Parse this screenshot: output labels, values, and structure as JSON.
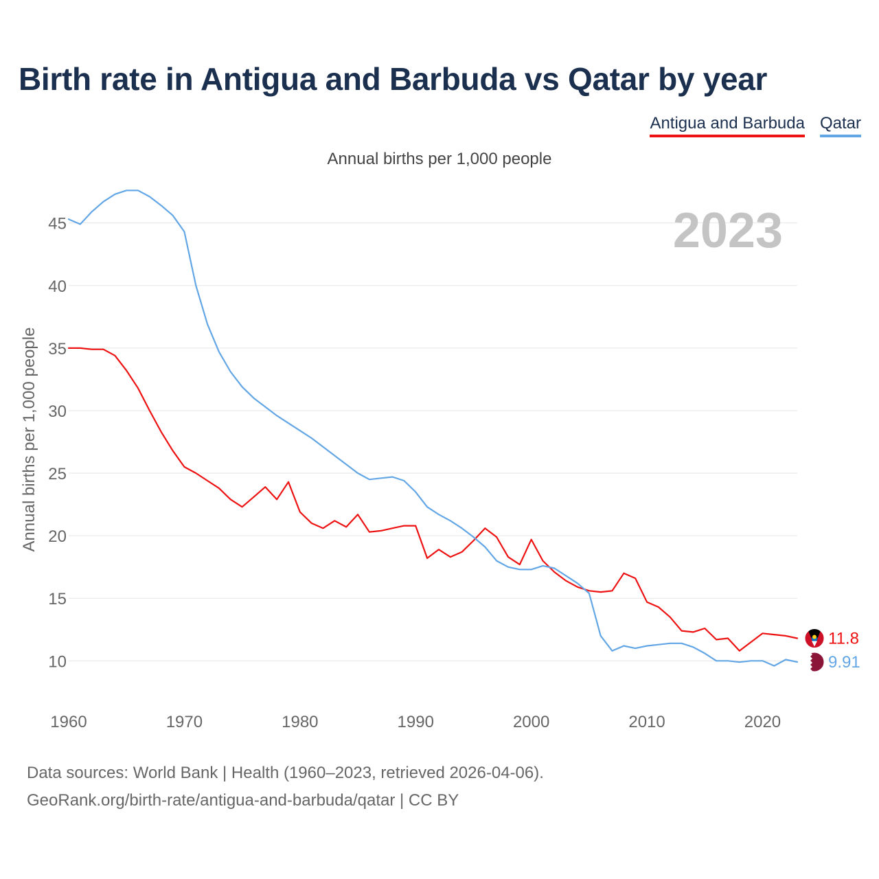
{
  "title": "Birth rate in Antigua and Barbuda vs Qatar by year",
  "legend": [
    {
      "label": "Antigua and Barbuda",
      "color": "#ee1111"
    },
    {
      "label": "Qatar",
      "color": "#62a6e6"
    }
  ],
  "subtitle": "Annual births per 1,000 people",
  "source": {
    "line1": "Data sources: World Bank | Health (1960–2023, retrieved 2026-04-06).",
    "line2": "GeoRank.org/birth-rate/antigua-and-barbuda/qatar | CC BY"
  },
  "chart_data": {
    "type": "line",
    "title": "Birth rate in Antigua and Barbuda vs Qatar by year",
    "ylabel": "Annual births per 1,000 people",
    "xlabel": "",
    "year_label": "2023",
    "xlim": [
      1960,
      2023
    ],
    "ylim": [
      7,
      48
    ],
    "x_ticks": [
      1960,
      1970,
      1980,
      1990,
      2000,
      2010,
      2020
    ],
    "y_ticks": [
      10,
      15,
      20,
      25,
      30,
      35,
      40,
      45
    ],
    "grid": true,
    "x": [
      1960,
      1961,
      1962,
      1963,
      1964,
      1965,
      1966,
      1967,
      1968,
      1969,
      1970,
      1971,
      1972,
      1973,
      1974,
      1975,
      1976,
      1977,
      1978,
      1979,
      1980,
      1981,
      1982,
      1983,
      1984,
      1985,
      1986,
      1987,
      1988,
      1989,
      1990,
      1991,
      1992,
      1993,
      1994,
      1995,
      1996,
      1997,
      1998,
      1999,
      2000,
      2001,
      2002,
      2003,
      2004,
      2005,
      2006,
      2007,
      2008,
      2009,
      2010,
      2011,
      2012,
      2013,
      2014,
      2015,
      2016,
      2017,
      2018,
      2019,
      2020,
      2021,
      2022,
      2023
    ],
    "series": [
      {
        "name": "Antigua and Barbuda",
        "color": "#ee1111",
        "end_label": "11.8",
        "values": [
          35.0,
          35.0,
          34.9,
          34.9,
          34.4,
          33.2,
          31.8,
          30.0,
          28.3,
          26.8,
          25.5,
          25.0,
          24.4,
          23.8,
          22.9,
          22.3,
          23.1,
          23.9,
          22.9,
          24.3,
          21.9,
          21.0,
          20.6,
          21.2,
          20.7,
          21.7,
          20.3,
          20.4,
          20.6,
          20.8,
          20.8,
          18.2,
          18.9,
          18.3,
          18.7,
          19.6,
          20.6,
          19.9,
          18.3,
          17.7,
          19.7,
          18.0,
          17.1,
          16.4,
          15.9,
          15.6,
          15.5,
          15.6,
          17.0,
          16.6,
          14.7,
          14.3,
          13.5,
          12.4,
          12.3,
          12.6,
          11.7,
          11.8,
          10.8,
          11.5,
          12.2,
          12.1,
          12.0,
          11.8
        ]
      },
      {
        "name": "Qatar",
        "color": "#62a6e6",
        "end_label": "9.91",
        "values": [
          45.3,
          44.9,
          45.9,
          46.7,
          47.3,
          47.6,
          47.6,
          47.1,
          46.4,
          45.6,
          44.3,
          40.0,
          36.9,
          34.7,
          33.1,
          31.9,
          31.0,
          30.3,
          29.6,
          29.0,
          28.4,
          27.8,
          27.1,
          26.4,
          25.7,
          25.0,
          24.5,
          24.6,
          24.7,
          24.4,
          23.5,
          22.3,
          21.7,
          21.2,
          20.6,
          19.9,
          19.1,
          18.0,
          17.5,
          17.3,
          17.3,
          17.6,
          17.4,
          16.8,
          16.2,
          15.4,
          12.0,
          10.8,
          11.2,
          11.0,
          11.2,
          11.3,
          11.4,
          11.4,
          11.1,
          10.6,
          10.0,
          10.0,
          9.9,
          10.0,
          10.0,
          9.6,
          10.1,
          9.91
        ]
      }
    ]
  }
}
